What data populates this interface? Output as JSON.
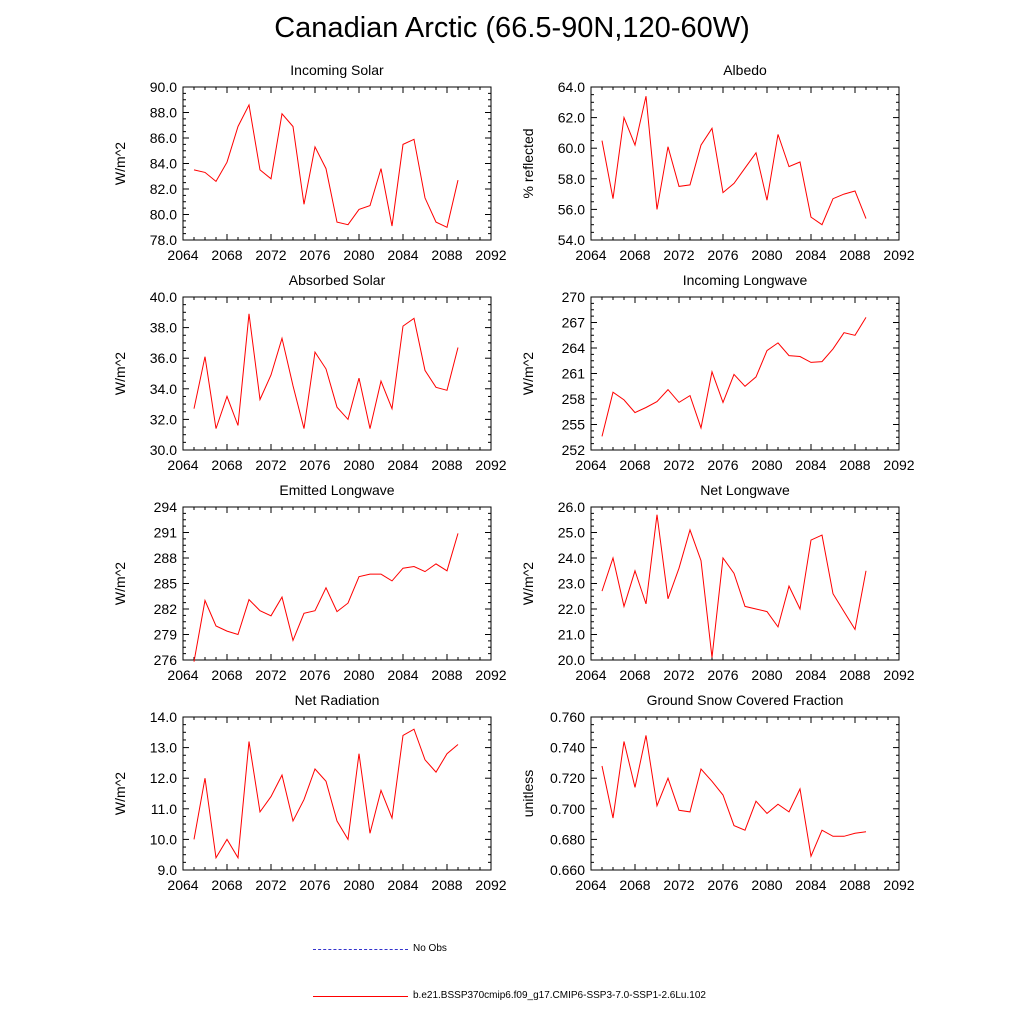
{
  "title": "Canadian Arctic (66.5-90N,120-60W)",
  "legend": {
    "entries": [
      {
        "label": "No Obs",
        "color": "#3333cc",
        "style": "dashed"
      },
      {
        "label": "b.e21.BSSP370cmip6.f09_g17.CMIP6-SSP3-7.0-SSP1-2.6Lu.102",
        "color": "#ff0000",
        "style": "solid"
      }
    ]
  },
  "chart_data": [
    {
      "type": "line",
      "title": "Incoming Solar",
      "xlabel": "",
      "ylabel": "W/m^2",
      "xlim": [
        2064,
        2092
      ],
      "ylim": [
        78,
        90
      ],
      "x_ticks": [
        "2064",
        "2068",
        "2072",
        "2076",
        "2080",
        "2084",
        "2088",
        "2092"
      ],
      "y_ticks": [
        "78.0",
        "80.0",
        "82.0",
        "84.0",
        "86.0",
        "88.0",
        "90.0"
      ],
      "series": [
        {
          "name": "b.e21.BSSP370cmip6.f09_g17.CMIP6-SSP3-7.0-SSP1-2.6Lu.102",
          "color": "#ff0000",
          "x": [
            2065,
            2066,
            2067,
            2068,
            2069,
            2070,
            2071,
            2072,
            2073,
            2074,
            2075,
            2076,
            2077,
            2078,
            2079,
            2080,
            2081,
            2082,
            2083,
            2084,
            2085,
            2086,
            2087,
            2088,
            2089
          ],
          "y": [
            83.5,
            83.3,
            82.6,
            84.1,
            86.9,
            88.6,
            83.5,
            82.8,
            87.9,
            86.9,
            80.8,
            85.3,
            83.6,
            79.4,
            79.2,
            80.4,
            80.7,
            83.6,
            79.1,
            85.5,
            85.9,
            81.3,
            79.4,
            79.0,
            82.7
          ]
        }
      ]
    },
    {
      "type": "line",
      "title": "Albedo",
      "xlabel": "",
      "ylabel": "% reflected",
      "xlim": [
        2064,
        2092
      ],
      "ylim": [
        54,
        64
      ],
      "x_ticks": [
        "2064",
        "2068",
        "2072",
        "2076",
        "2080",
        "2084",
        "2088",
        "2092"
      ],
      "y_ticks": [
        "54.0",
        "56.0",
        "58.0",
        "60.0",
        "62.0",
        "64.0"
      ],
      "series": [
        {
          "name": "b.e21.BSSP370cmip6.f09_g17.CMIP6-SSP3-7.0-SSP1-2.6Lu.102",
          "color": "#ff0000",
          "x": [
            2065,
            2066,
            2067,
            2068,
            2069,
            2070,
            2071,
            2072,
            2073,
            2074,
            2075,
            2076,
            2077,
            2078,
            2079,
            2080,
            2081,
            2082,
            2083,
            2084,
            2085,
            2086,
            2087,
            2088,
            2089
          ],
          "y": [
            60.5,
            56.7,
            62.0,
            60.2,
            63.4,
            56.0,
            60.1,
            57.5,
            57.6,
            60.2,
            61.3,
            57.1,
            57.7,
            58.7,
            59.7,
            56.6,
            60.9,
            58.8,
            59.1,
            55.5,
            55.0,
            56.7,
            57.0,
            57.2,
            55.4
          ]
        }
      ]
    },
    {
      "type": "line",
      "title": "Absorbed Solar",
      "xlabel": "",
      "ylabel": "W/m^2",
      "xlim": [
        2064,
        2092
      ],
      "ylim": [
        30,
        40
      ],
      "x_ticks": [
        "2064",
        "2068",
        "2072",
        "2076",
        "2080",
        "2084",
        "2088",
        "2092"
      ],
      "y_ticks": [
        "30.0",
        "32.0",
        "34.0",
        "36.0",
        "38.0",
        "40.0"
      ],
      "series": [
        {
          "name": "b.e21.BSSP370cmip6.f09_g17.CMIP6-SSP3-7.0-SSP1-2.6Lu.102",
          "color": "#ff0000",
          "x": [
            2065,
            2066,
            2067,
            2068,
            2069,
            2070,
            2071,
            2072,
            2073,
            2074,
            2075,
            2076,
            2077,
            2078,
            2079,
            2080,
            2081,
            2082,
            2083,
            2084,
            2085,
            2086,
            2087,
            2088,
            2089
          ],
          "y": [
            32.7,
            36.1,
            31.4,
            33.5,
            31.6,
            38.9,
            33.3,
            34.9,
            37.3,
            34.2,
            31.4,
            36.4,
            35.3,
            32.8,
            32.0,
            34.7,
            31.4,
            34.5,
            32.7,
            38.1,
            38.6,
            35.2,
            34.1,
            33.9,
            36.7
          ]
        }
      ]
    },
    {
      "type": "line",
      "title": "Incoming Longwave",
      "xlabel": "",
      "ylabel": "W/m^2",
      "xlim": [
        2064,
        2092
      ],
      "ylim": [
        252,
        270
      ],
      "x_ticks": [
        "2064",
        "2068",
        "2072",
        "2076",
        "2080",
        "2084",
        "2088",
        "2092"
      ],
      "y_ticks": [
        "252",
        "255",
        "258",
        "261",
        "264",
        "267",
        "270"
      ],
      "series": [
        {
          "name": "b.e21.BSSP370cmip6.f09_g17.CMIP6-SSP3-7.0-SSP1-2.6Lu.102",
          "color": "#ff0000",
          "x": [
            2065,
            2066,
            2067,
            2068,
            2069,
            2070,
            2071,
            2072,
            2073,
            2074,
            2075,
            2076,
            2077,
            2078,
            2079,
            2080,
            2081,
            2082,
            2083,
            2084,
            2085,
            2086,
            2087,
            2088,
            2089
          ],
          "y": [
            253.6,
            258.8,
            257.9,
            256.4,
            257.0,
            257.7,
            259.1,
            257.6,
            258.4,
            254.6,
            261.2,
            257.6,
            260.9,
            259.5,
            260.6,
            263.7,
            264.6,
            263.1,
            263.0,
            262.3,
            262.4,
            263.9,
            265.8,
            265.5,
            267.6
          ]
        }
      ]
    },
    {
      "type": "line",
      "title": "Emitted Longwave",
      "xlabel": "",
      "ylabel": "W/m^2",
      "xlim": [
        2064,
        2092
      ],
      "ylim": [
        276,
        294
      ],
      "x_ticks": [
        "2064",
        "2068",
        "2072",
        "2076",
        "2080",
        "2084",
        "2088",
        "2092"
      ],
      "y_ticks": [
        "276",
        "279",
        "282",
        "285",
        "288",
        "291",
        "294"
      ],
      "series": [
        {
          "name": "b.e21.BSSP370cmip6.f09_g17.CMIP6-SSP3-7.0-SSP1-2.6Lu.102",
          "color": "#ff0000",
          "x": [
            2065,
            2066,
            2067,
            2068,
            2069,
            2070,
            2071,
            2072,
            2073,
            2074,
            2075,
            2076,
            2077,
            2078,
            2079,
            2080,
            2081,
            2082,
            2083,
            2084,
            2085,
            2086,
            2087,
            2088,
            2089
          ],
          "y": [
            275.8,
            283.0,
            280.0,
            279.4,
            279.0,
            283.1,
            281.8,
            281.2,
            283.4,
            278.3,
            281.5,
            281.8,
            284.5,
            281.7,
            282.7,
            285.8,
            286.1,
            286.1,
            285.3,
            286.8,
            287.0,
            286.4,
            287.3,
            286.5,
            290.9
          ]
        }
      ]
    },
    {
      "type": "line",
      "title": "Net Longwave",
      "xlabel": "",
      "ylabel": "W/m^2",
      "xlim": [
        2064,
        2092
      ],
      "ylim": [
        20,
        26
      ],
      "x_ticks": [
        "2064",
        "2068",
        "2072",
        "2076",
        "2080",
        "2084",
        "2088",
        "2092"
      ],
      "y_ticks": [
        "20.0",
        "21.0",
        "22.0",
        "23.0",
        "24.0",
        "25.0",
        "26.0"
      ],
      "series": [
        {
          "name": "b.e21.BSSP370cmip6.f09_g17.CMIP6-SSP3-7.0-SSP1-2.6Lu.102",
          "color": "#ff0000",
          "x": [
            2065,
            2066,
            2067,
            2068,
            2069,
            2070,
            2071,
            2072,
            2073,
            2074,
            2075,
            2076,
            2077,
            2078,
            2079,
            2080,
            2081,
            2082,
            2083,
            2084,
            2085,
            2086,
            2087,
            2088,
            2089
          ],
          "y": [
            22.7,
            24.0,
            22.1,
            23.5,
            22.2,
            25.7,
            22.4,
            23.6,
            25.1,
            23.9,
            20.1,
            24.0,
            23.4,
            22.1,
            22.0,
            21.9,
            21.3,
            22.9,
            22.0,
            24.7,
            24.9,
            22.6,
            21.9,
            21.2,
            23.5
          ]
        }
      ]
    },
    {
      "type": "line",
      "title": "Net Radiation",
      "xlabel": "",
      "ylabel": "W/m^2",
      "xlim": [
        2064,
        2092
      ],
      "ylim": [
        9,
        14
      ],
      "x_ticks": [
        "2064",
        "2068",
        "2072",
        "2076",
        "2080",
        "2084",
        "2088",
        "2092"
      ],
      "y_ticks": [
        "9.0",
        "10.0",
        "11.0",
        "12.0",
        "13.0",
        "14.0"
      ],
      "series": [
        {
          "name": "b.e21.BSSP370cmip6.f09_g17.CMIP6-SSP3-7.0-SSP1-2.6Lu.102",
          "color": "#ff0000",
          "x": [
            2065,
            2066,
            2067,
            2068,
            2069,
            2070,
            2071,
            2072,
            2073,
            2074,
            2075,
            2076,
            2077,
            2078,
            2079,
            2080,
            2081,
            2082,
            2083,
            2084,
            2085,
            2086,
            2087,
            2088,
            2089
          ],
          "y": [
            10.0,
            12.0,
            9.4,
            10.0,
            9.4,
            13.2,
            10.9,
            11.4,
            12.1,
            10.6,
            11.3,
            12.3,
            11.9,
            10.6,
            10.0,
            12.8,
            10.2,
            11.6,
            10.7,
            13.4,
            13.6,
            12.6,
            12.2,
            12.8,
            13.1
          ]
        }
      ]
    },
    {
      "type": "line",
      "title": "Ground Snow Covered Fraction",
      "xlabel": "",
      "ylabel": "unitless",
      "xlim": [
        2064,
        2092
      ],
      "ylim": [
        0.66,
        0.76
      ],
      "x_ticks": [
        "2064",
        "2068",
        "2072",
        "2076",
        "2080",
        "2084",
        "2088",
        "2092"
      ],
      "y_ticks": [
        "0.660",
        "0.680",
        "0.700",
        "0.720",
        "0.740",
        "0.760"
      ],
      "series": [
        {
          "name": "b.e21.BSSP370cmip6.f09_g17.CMIP6-SSP3-7.0-SSP1-2.6Lu.102",
          "color": "#ff0000",
          "x": [
            2065,
            2066,
            2067,
            2068,
            2069,
            2070,
            2071,
            2072,
            2073,
            2074,
            2075,
            2076,
            2077,
            2078,
            2079,
            2080,
            2081,
            2082,
            2083,
            2084,
            2085,
            2086,
            2087,
            2088,
            2089
          ],
          "y": [
            0.728,
            0.694,
            0.744,
            0.714,
            0.748,
            0.702,
            0.72,
            0.699,
            0.698,
            0.726,
            0.718,
            0.709,
            0.689,
            0.686,
            0.705,
            0.697,
            0.703,
            0.698,
            0.713,
            0.669,
            0.686,
            0.682,
            0.682,
            0.684,
            0.685
          ]
        }
      ]
    }
  ]
}
